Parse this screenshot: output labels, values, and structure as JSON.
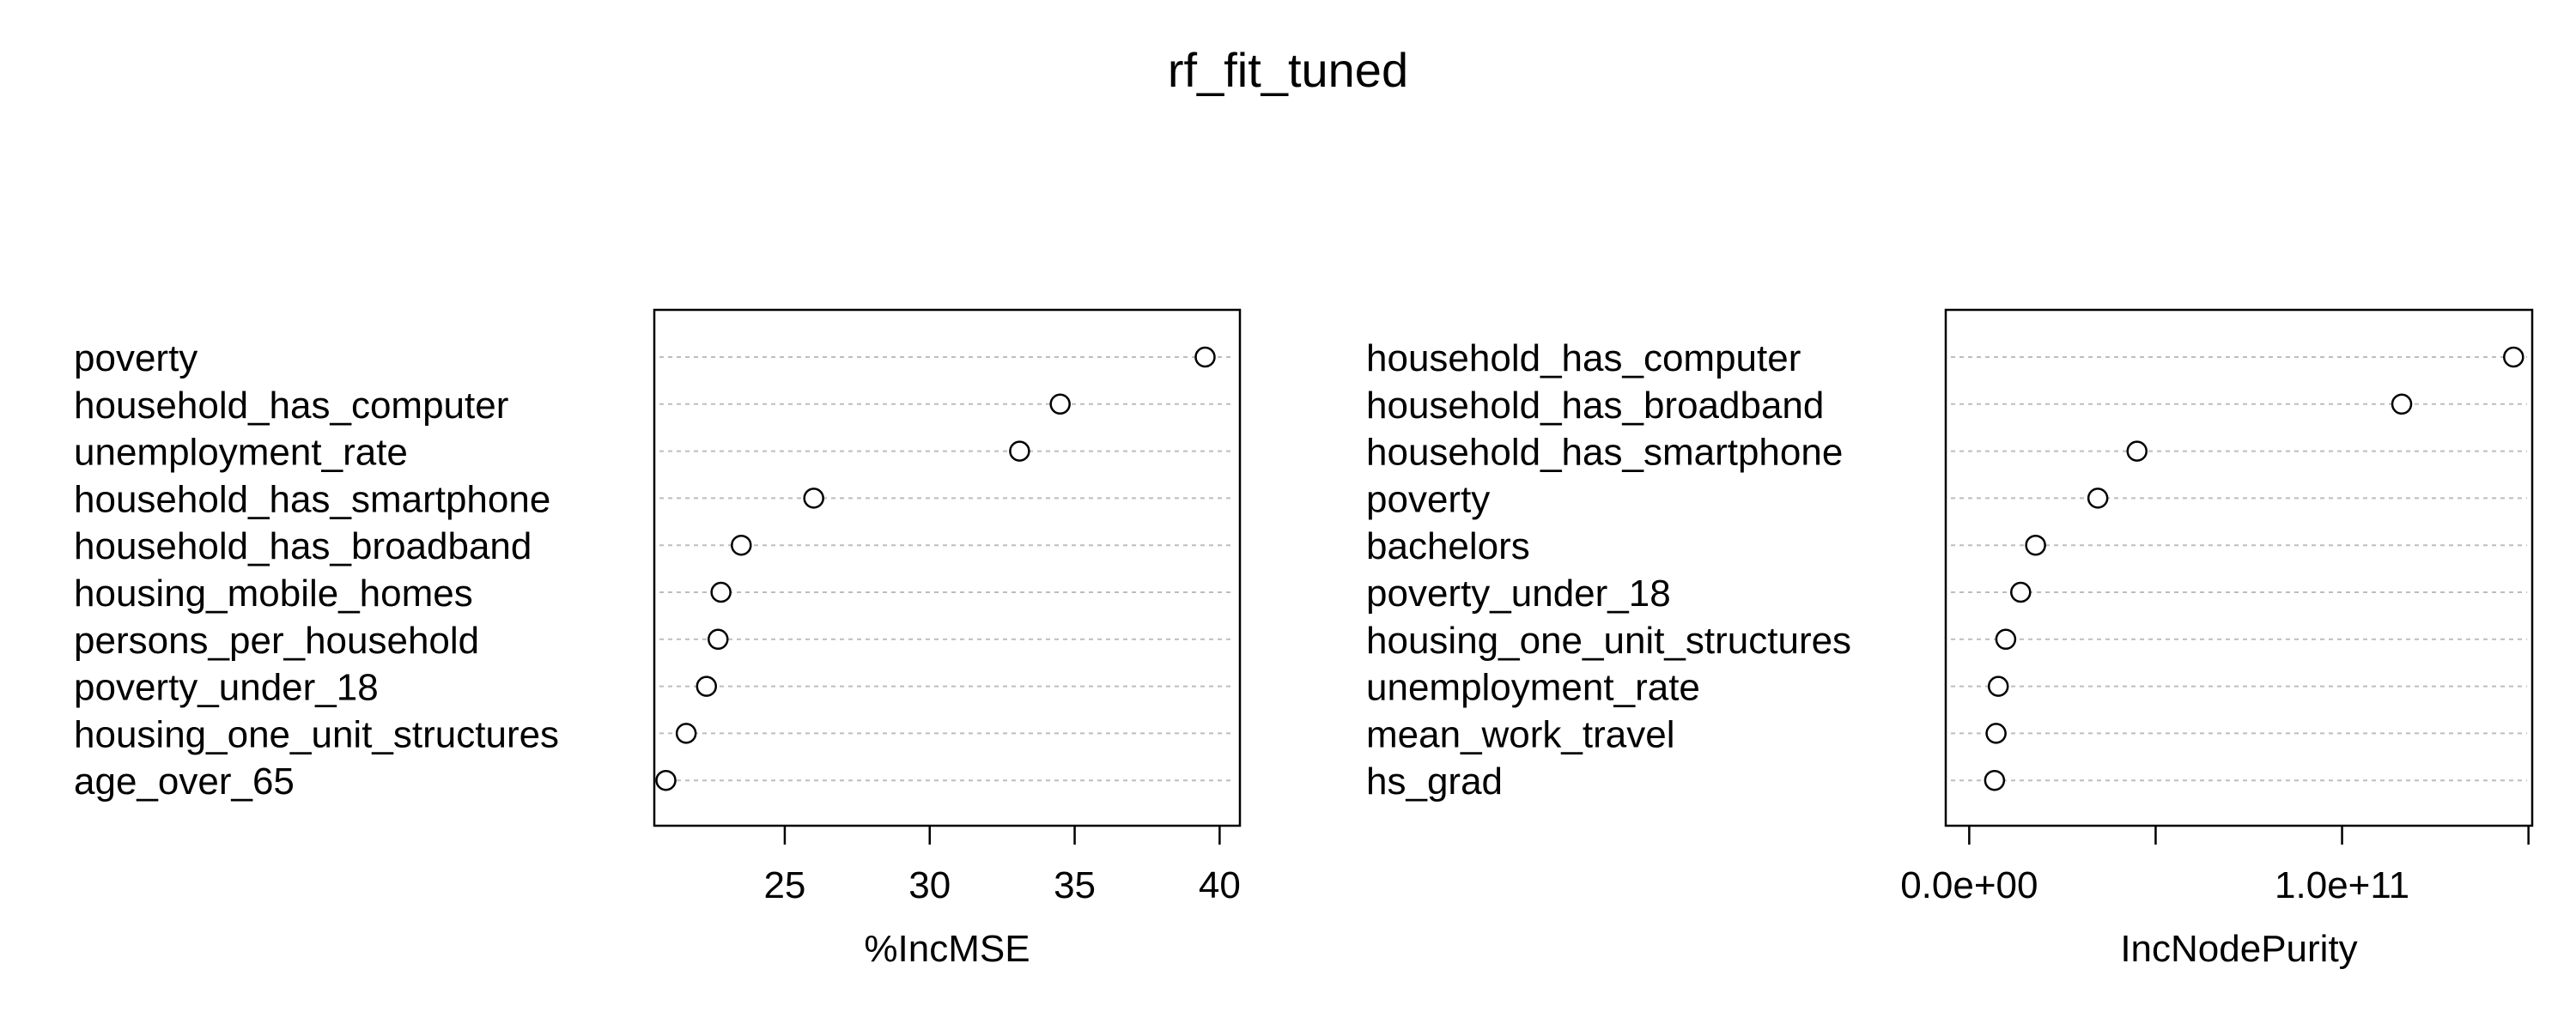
{
  "title": "rf_fit_tuned",
  "chart_data": [
    {
      "type": "scatter",
      "title": "",
      "xlabel": "%IncMSE",
      "ylabel": "",
      "xlim": [
        20.5,
        40.7
      ],
      "xticks": [
        25,
        30,
        35,
        40
      ],
      "xtick_labels": [
        "25",
        "30",
        "35",
        "40"
      ],
      "grid": "dotted horizontal lines per variable",
      "categories": [
        "poverty",
        "household_has_computer",
        "unemployment_rate",
        "household_has_smartphone",
        "household_has_broadband",
        "housing_mobile_homes",
        "persons_per_household",
        "poverty_under_18",
        "housing_one_unit_structures",
        "age_over_65"
      ],
      "values": [
        39.5,
        34.5,
        33.1,
        26.0,
        23.5,
        22.8,
        22.7,
        22.3,
        21.6,
        20.9
      ]
    },
    {
      "type": "scatter",
      "title": "",
      "xlabel": "IncNodePurity",
      "ylabel": "",
      "xlim": [
        -6300000000.0,
        151000000000.0
      ],
      "xticks": [
        0,
        50000000000,
        100000000000,
        150000000000
      ],
      "xtick_labels": [
        "0.0e+00",
        "",
        "1.0e+11",
        ""
      ],
      "grid": "dotted horizontal lines per variable",
      "categories": [
        "household_has_computer",
        "household_has_broadband",
        "household_has_smartphone",
        "poverty",
        "bachelors",
        "poverty_under_18",
        "housing_one_unit_structures",
        "unemployment_rate",
        "mean_work_travel",
        "hs_grad"
      ],
      "values": [
        146000000000,
        116000000000,
        45000000000,
        34500000000,
        17800000000,
        13800000000,
        9800000000,
        7800000000,
        7200000000,
        6800000000
      ]
    }
  ]
}
